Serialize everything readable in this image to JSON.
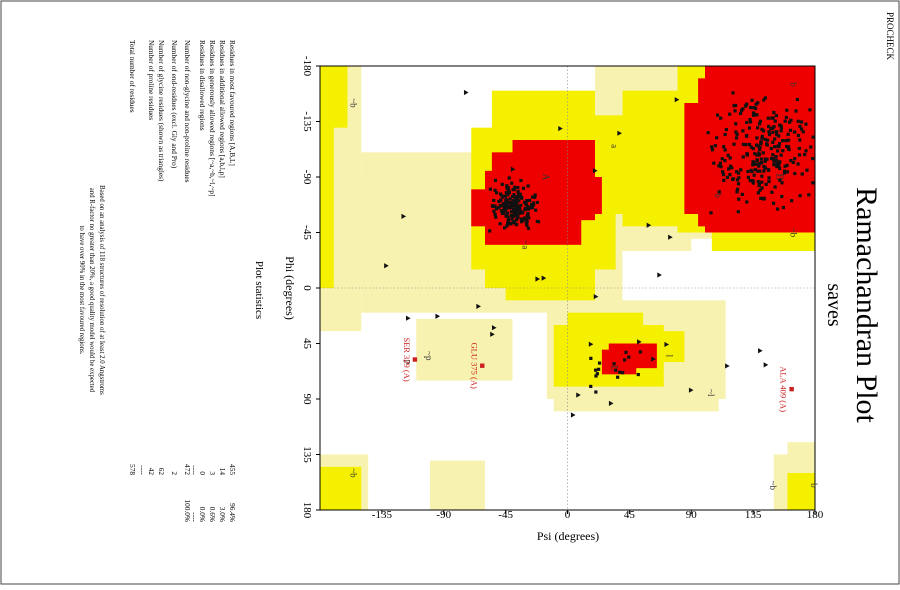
{
  "header": {
    "program": "PROCHECK"
  },
  "chart_data": {
    "type": "scatter",
    "title": "Ramachandran Plot",
    "subtitle": "saves",
    "xlabel": "Phi (degrees)",
    "ylabel": "Psi (degrees)",
    "xlim": [
      -180,
      180
    ],
    "ylim": [
      -180,
      180
    ],
    "x_ticks": [
      "-180",
      "-135",
      "-90",
      "-45",
      "0",
      "45",
      "90",
      "135",
      "180"
    ],
    "y_ticks": [
      "-135",
      "-90",
      "-45",
      "0",
      "45",
      "90",
      "135",
      "180"
    ],
    "region_labels": [
      "B",
      "b",
      "b",
      "A",
      "a",
      "~a",
      "~b",
      "~b",
      "~b",
      "L",
      "l",
      "~l",
      "~p",
      "p",
      "~b",
      "b"
    ],
    "colors": {
      "most_favoured": "#ee0000",
      "additional_allowed": "#f5f000",
      "generously_allowed": "#f7f2b0",
      "disallowed": "#ffffff",
      "points": "#111111",
      "outlier": "#cc1f1f"
    },
    "highlighted_residues": [
      {
        "label": "ALA 409 (A)",
        "phi": 82,
        "psi": 163
      },
      {
        "label": "GLU 375 (A)",
        "phi": 63,
        "psi": -62
      },
      {
        "label": "SER 329 (A)",
        "phi": 58,
        "psi": -111
      }
    ],
    "point_clusters": [
      {
        "region": "beta sheet",
        "phi_range": [
          -160,
          -60
        ],
        "psi_range": [
          100,
          180
        ]
      },
      {
        "region": "right-handed alpha helix",
        "phi_range": [
          -90,
          -45
        ],
        "psi_range": [
          -60,
          -20
        ]
      },
      {
        "region": "left-handed helix",
        "phi_range": [
          45,
          90
        ],
        "psi_range": [
          0,
          60
        ]
      },
      {
        "region": "glycine (triangles)",
        "phi_range": [
          -180,
          180
        ],
        "psi_range": [
          -180,
          180
        ]
      }
    ]
  },
  "statistics": {
    "heading": "Plot statistics",
    "rows": [
      {
        "label": "Residues in most favoured regions  [A,B,L]",
        "count": "455",
        "pct": "96.4%"
      },
      {
        "label": "Residues in additional allowed regions  [a,b,l,p]",
        "count": "14",
        "pct": "3.0%"
      },
      {
        "label": "Residues in generously allowed regions  [~a,~b,~l,~p]",
        "count": "3",
        "pct": "0.6%"
      },
      {
        "label": "Residues in disallowed regions",
        "count": "0",
        "pct": "0.0%"
      },
      {
        "label": "Number of non-glycine and non-proline residues",
        "count": "472",
        "pct": "100.0%"
      },
      {
        "label": "Number of end-residues (excl. Gly and Pro)",
        "count": "2",
        "pct": ""
      },
      {
        "label": "Number of glycine residues (shown as triangles)",
        "count": "62",
        "pct": ""
      },
      {
        "label": "Number of proline residues",
        "count": "42",
        "pct": ""
      },
      {
        "label": "Total number of residues",
        "count": "578",
        "pct": ""
      }
    ],
    "divider": "----",
    "footnote": [
      "Based on an analysis of 118 structures of resolution of at least 2.0 Angstroms",
      "and R-factor no greater than 20%, a good quality model would be expected",
      "to have over 90% in the most favoured regions."
    ]
  }
}
